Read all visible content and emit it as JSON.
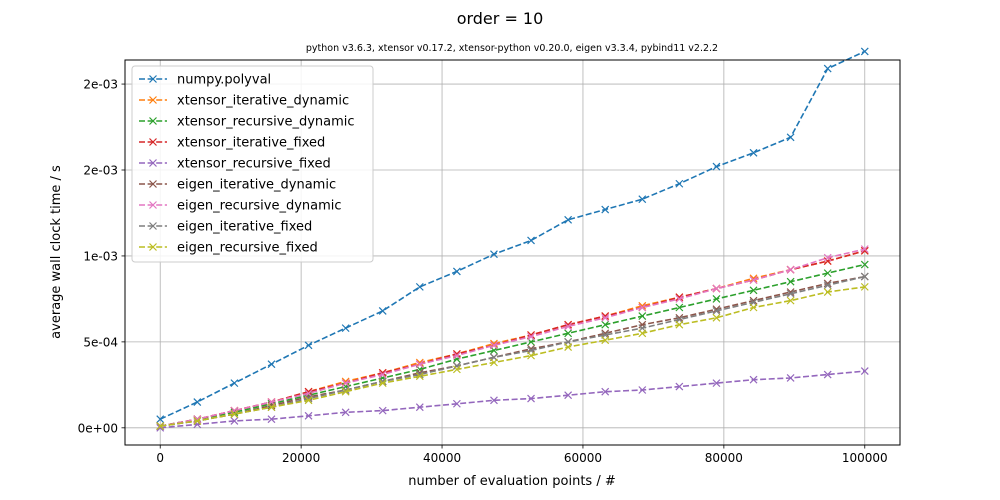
{
  "chart_data": {
    "type": "line",
    "title": "order = 10",
    "subtitle": "python v3.6.3, xtensor v0.17.2, xtensor-python v0.20.0, eigen v3.3.4, pybind11 v2.2.2",
    "xlabel": "number of evaluation points / #",
    "ylabel": "average wall clock time / s",
    "xlim": [
      -5000,
      105000
    ],
    "ylim": [
      -0.0001,
      0.00214
    ],
    "grid": true,
    "legend_position": "upper-left",
    "x_ticks": [
      {
        "value": 0,
        "label": "0"
      },
      {
        "value": 20000,
        "label": "20000"
      },
      {
        "value": 40000,
        "label": "40000"
      },
      {
        "value": 60000,
        "label": "60000"
      },
      {
        "value": 80000,
        "label": "80000"
      },
      {
        "value": 100000,
        "label": "100000"
      }
    ],
    "y_ticks": [
      {
        "value": 0,
        "label": "0e+00"
      },
      {
        "value": 0.0005,
        "label": "5e-04"
      },
      {
        "value": 0.001,
        "label": "1e-03"
      },
      {
        "value": 0.0015,
        "label": "2e-03"
      },
      {
        "value": 0.002,
        "label": "2e-03"
      }
    ],
    "x": [
      1,
      5264,
      10527,
      15790,
      21053,
      26316,
      31579,
      36843,
      42106,
      47369,
      52632,
      57895,
      63158,
      68422,
      73685,
      78948,
      84211,
      89474,
      94737,
      100000
    ],
    "series": [
      {
        "name": "numpy.polyval",
        "color": "#1f77b4",
        "values": [
          5e-05,
          0.00015,
          0.00026,
          0.00037,
          0.00048,
          0.00058,
          0.00068,
          0.00082,
          0.00091,
          0.00101,
          0.00109,
          0.00121,
          0.00127,
          0.00133,
          0.00142,
          0.00152,
          0.0016,
          0.00169,
          0.00209,
          0.00219
        ]
      },
      {
        "name": "xtensor_iterative_dynamic",
        "color": "#ff7f0e",
        "values": [
          1e-05,
          5e-05,
          0.0001,
          0.00015,
          0.00021,
          0.00027,
          0.00032,
          0.00038,
          0.00043,
          0.00049,
          0.00054,
          0.0006,
          0.00065,
          0.00071,
          0.00076,
          0.00081,
          0.00087,
          0.00092,
          0.00097,
          0.00103
        ]
      },
      {
        "name": "xtensor_recursive_dynamic",
        "color": "#2ca02c",
        "values": [
          1e-05,
          5e-05,
          9e-05,
          0.00014,
          0.00019,
          0.00024,
          0.00029,
          0.00034,
          0.0004,
          0.00045,
          0.0005,
          0.00055,
          0.0006,
          0.00065,
          0.0007,
          0.00075,
          0.0008,
          0.00085,
          0.0009,
          0.00095
        ]
      },
      {
        "name": "xtensor_iterative_fixed",
        "color": "#d62728",
        "values": [
          1e-05,
          5e-05,
          0.0001,
          0.00015,
          0.00021,
          0.00026,
          0.00032,
          0.00037,
          0.00043,
          0.00048,
          0.00054,
          0.0006,
          0.00065,
          0.0007,
          0.00076,
          0.00081,
          0.00086,
          0.00092,
          0.00097,
          0.00103
        ]
      },
      {
        "name": "xtensor_recursive_fixed",
        "color": "#9467bd",
        "values": [
          0.0,
          2e-05,
          4e-05,
          5e-05,
          7e-05,
          9e-05,
          0.0001,
          0.00012,
          0.00014,
          0.00016,
          0.00017,
          0.00019,
          0.00021,
          0.00022,
          0.00024,
          0.00026,
          0.00028,
          0.00029,
          0.00031,
          0.00033
        ]
      },
      {
        "name": "eigen_iterative_dynamic",
        "color": "#8c564b",
        "values": [
          1e-05,
          4e-05,
          8e-05,
          0.00013,
          0.00018,
          0.00022,
          0.00027,
          0.00032,
          0.00036,
          0.00041,
          0.00046,
          0.0005,
          0.00055,
          0.0006,
          0.00064,
          0.00069,
          0.00074,
          0.00079,
          0.00084,
          0.00088
        ]
      },
      {
        "name": "eigen_recursive_dynamic",
        "color": "#e377c2",
        "values": [
          1e-05,
          5e-05,
          0.0001,
          0.00015,
          0.0002,
          0.00026,
          0.00031,
          0.00037,
          0.00042,
          0.00048,
          0.00053,
          0.00059,
          0.00064,
          0.0007,
          0.00075,
          0.00081,
          0.00086,
          0.00092,
          0.00099,
          0.00104
        ]
      },
      {
        "name": "eigen_iterative_fixed",
        "color": "#7f7f7f",
        "values": [
          1e-05,
          4e-05,
          8e-05,
          0.00012,
          0.00017,
          0.00022,
          0.00027,
          0.00031,
          0.00036,
          0.00041,
          0.00045,
          0.0005,
          0.00054,
          0.00058,
          0.00063,
          0.00068,
          0.00073,
          0.00078,
          0.00083,
          0.00088
        ]
      },
      {
        "name": "eigen_recursive_fixed",
        "color": "#bcbd22",
        "values": [
          1e-05,
          4e-05,
          8e-05,
          0.00012,
          0.00016,
          0.00021,
          0.00026,
          0.0003,
          0.00034,
          0.00038,
          0.00042,
          0.00047,
          0.00051,
          0.00055,
          0.0006,
          0.00064,
          0.0007,
          0.00074,
          0.00079,
          0.00082
        ]
      }
    ]
  }
}
